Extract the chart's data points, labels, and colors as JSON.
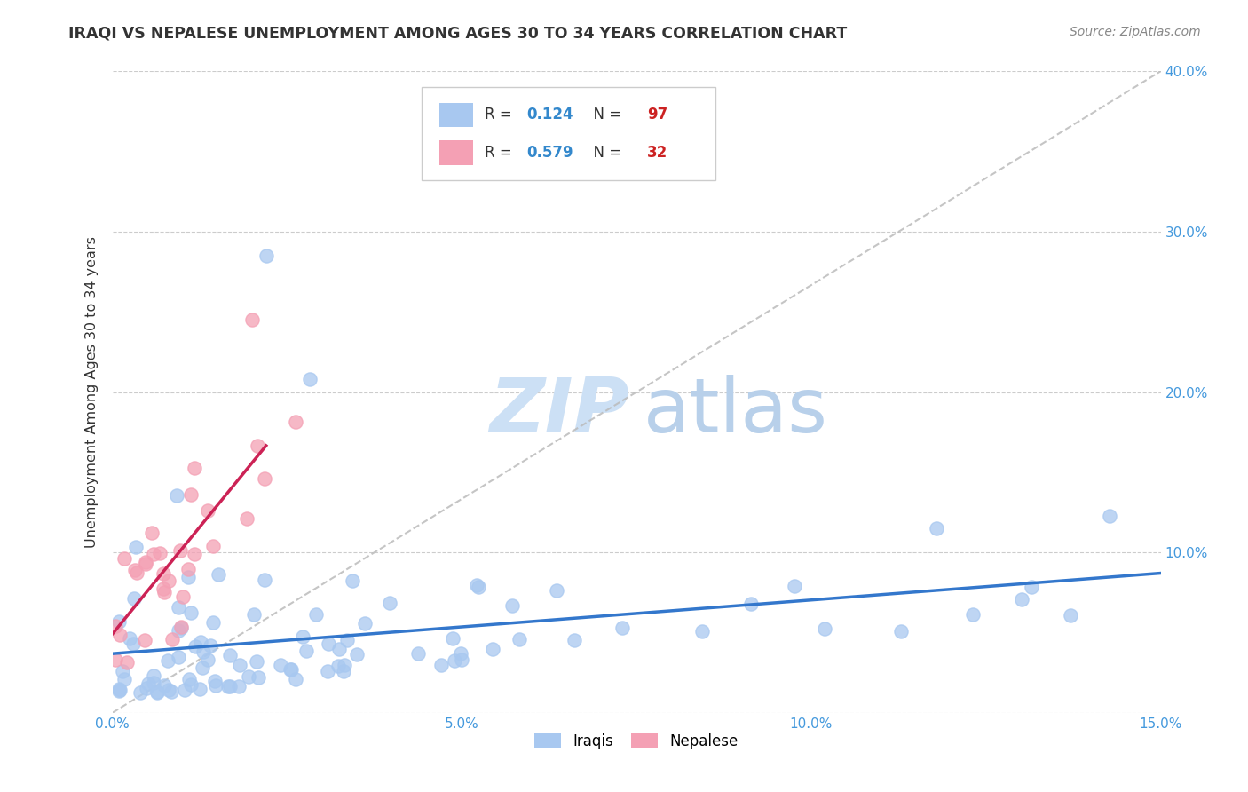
{
  "title": "IRAQI VS NEPALESE UNEMPLOYMENT AMONG AGES 30 TO 34 YEARS CORRELATION CHART",
  "source": "Source: ZipAtlas.com",
  "ylabel": "Unemployment Among Ages 30 to 34 years",
  "xlim": [
    0.0,
    0.15
  ],
  "ylim": [
    0.0,
    0.4
  ],
  "xtick_vals": [
    0.0,
    0.05,
    0.1,
    0.15
  ],
  "ytick_vals": [
    0.0,
    0.1,
    0.2,
    0.3,
    0.4
  ],
  "xticklabels": [
    "0.0%",
    "5.0%",
    "10.0%",
    "15.0%"
  ],
  "yticklabels": [
    "",
    "10.0%",
    "20.0%",
    "30.0%",
    "40.0%"
  ],
  "iraqi_scatter_color": "#a8c8f0",
  "nepalese_scatter_color": "#f4a0b4",
  "iraqi_line_color": "#3377cc",
  "nepalese_line_color": "#cc2255",
  "grid_color": "#cccccc",
  "tick_color": "#4499dd",
  "R_iraqi": "0.124",
  "N_iraqi": "97",
  "R_nepalese": "0.579",
  "N_nepalese": "32",
  "legend_iraqi": "Iraqis",
  "legend_nepalese": "Nepalese",
  "watermark_zip_color": "#cce0f5",
  "watermark_atlas_color": "#b8d0ea",
  "title_color": "#333333",
  "source_color": "#888888",
  "ylabel_color": "#333333",
  "rn_text_color": "#333333",
  "rn_value_color": "#3388cc",
  "n_value_color": "#cc2222"
}
